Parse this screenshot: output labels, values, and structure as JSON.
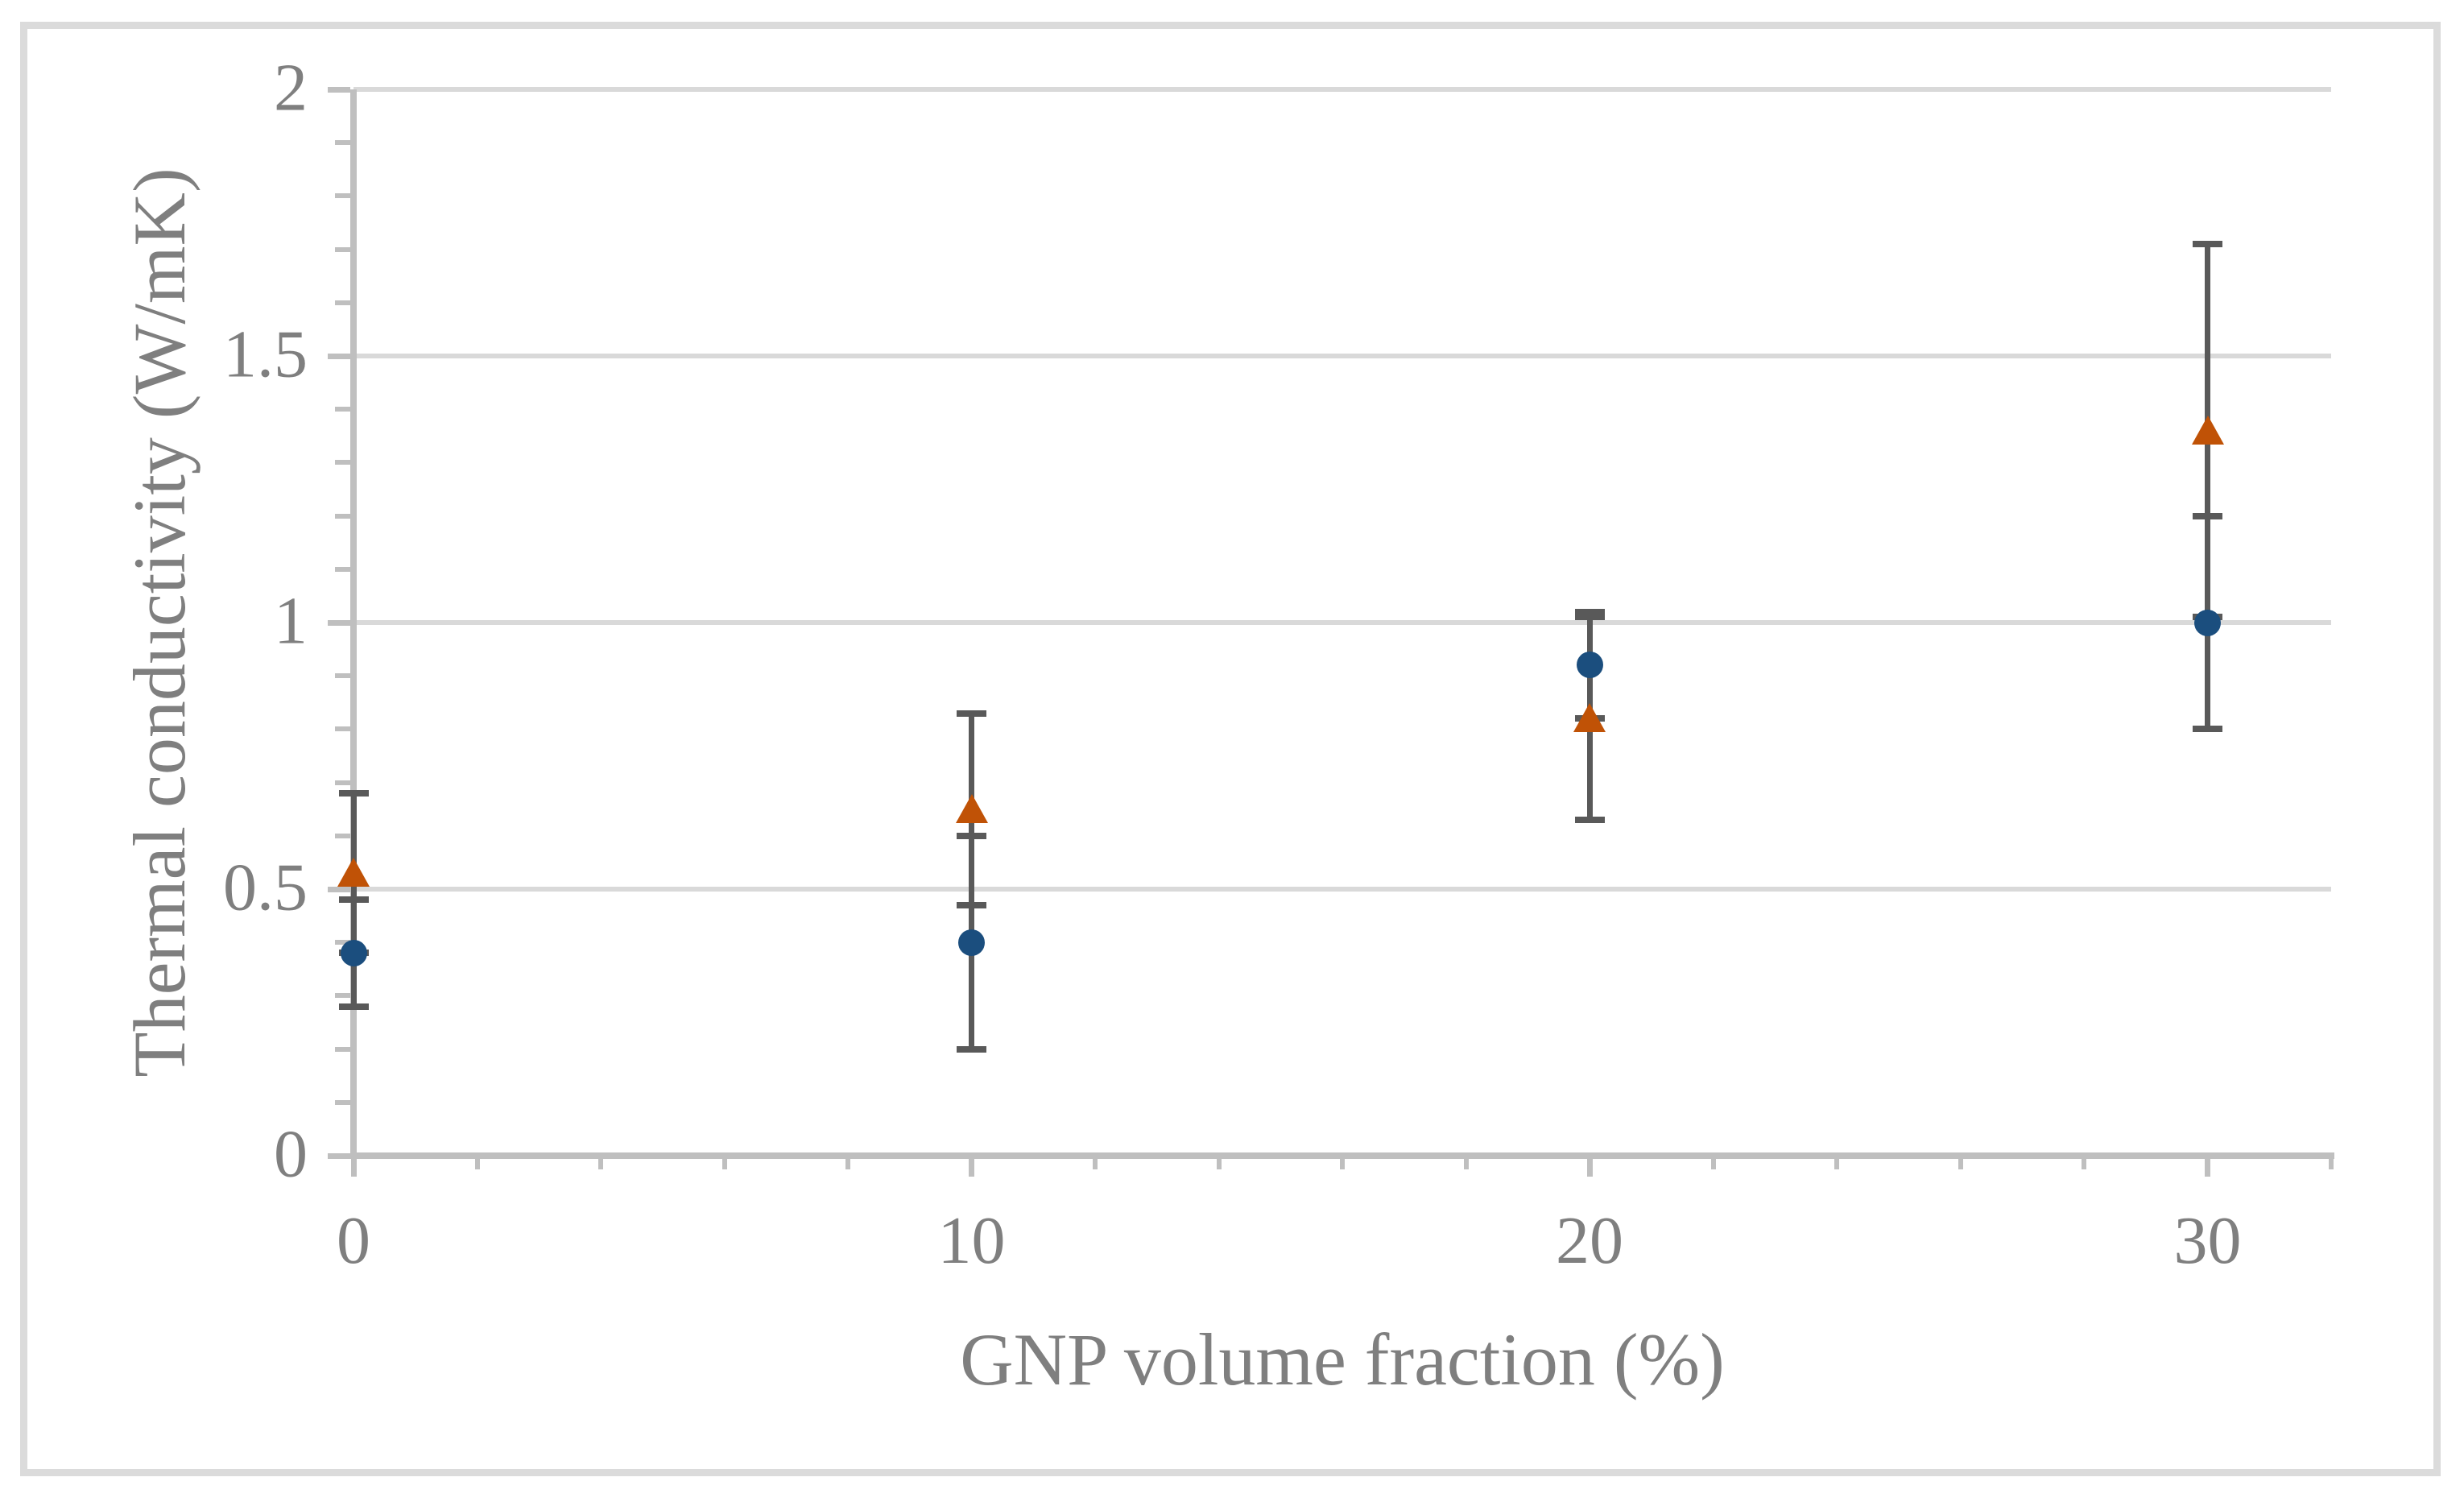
{
  "figure": {
    "background": "#ffffff",
    "border_color": "#DBDBDB"
  },
  "chart_data": {
    "type": "scatter",
    "title": "",
    "xlabel": "GNP volume fraction (%)",
    "ylabel": "Thermal conductivity (W/mK)",
    "xlim": [
      0,
      32
    ],
    "ylim": [
      0,
      2
    ],
    "x": [
      0,
      10,
      20,
      30
    ],
    "series": [
      {
        "name": "blue-circle-series",
        "marker": "circle",
        "color": "#1B4E7E",
        "values": [
          0.38,
          0.4,
          0.92,
          1.0
        ],
        "yerr": [
          0.1,
          0.2,
          0.1,
          0.2
        ]
      },
      {
        "name": "orange-triangle-series",
        "marker": "triangle",
        "color": "#C05206",
        "values": [
          0.53,
          0.65,
          0.82,
          1.36
        ],
        "yerr": [
          0.15,
          0.18,
          0.19,
          0.35
        ]
      }
    ],
    "x_major_ticks": [
      0,
      10,
      20,
      30
    ],
    "x_tick_labels": [
      "0",
      "10",
      "20",
      "30"
    ],
    "x_minor_step": 2,
    "y_major_ticks": [
      0,
      0.5,
      1,
      1.5,
      2
    ],
    "y_tick_labels": [
      "0",
      "0.5",
      "1",
      "1.5",
      "2"
    ],
    "y_minor_step": 0.1,
    "grid": "horizontal-major-only",
    "legend": "none",
    "error_bar_color": "#595959",
    "grid_color": "#D9D9D9",
    "axis_color": "#BFBFBF",
    "text_color": "#7F7F7F"
  }
}
